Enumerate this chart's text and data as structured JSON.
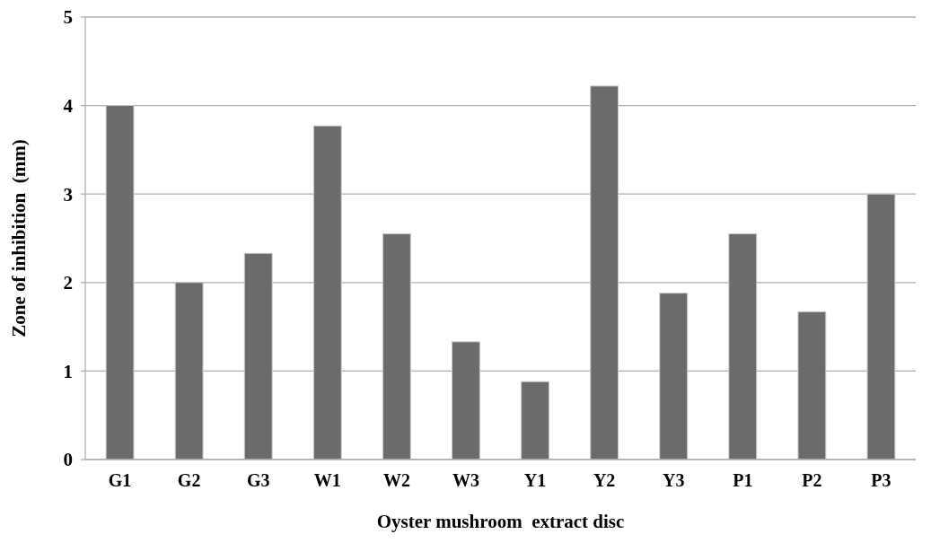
{
  "chart_data": {
    "type": "bar",
    "xlabel": "Oyster mushroom  extract disc",
    "ylabel": "Zone of inhibition  (mm)",
    "categories": [
      "G1",
      "G2",
      "G3",
      "W1",
      "W2",
      "W3",
      "Y1",
      "Y2",
      "Y3",
      "P1",
      "P2",
      "P3"
    ],
    "values": [
      4,
      2,
      2.33,
      3.77,
      2.55,
      1.33,
      0.88,
      4.22,
      1.88,
      2.55,
      1.67,
      3
    ],
    "color": "#6b6b6b",
    "ylim": [
      0,
      5
    ],
    "yticks": [
      0,
      1,
      2,
      3,
      4,
      5
    ],
    "grid": "y"
  }
}
